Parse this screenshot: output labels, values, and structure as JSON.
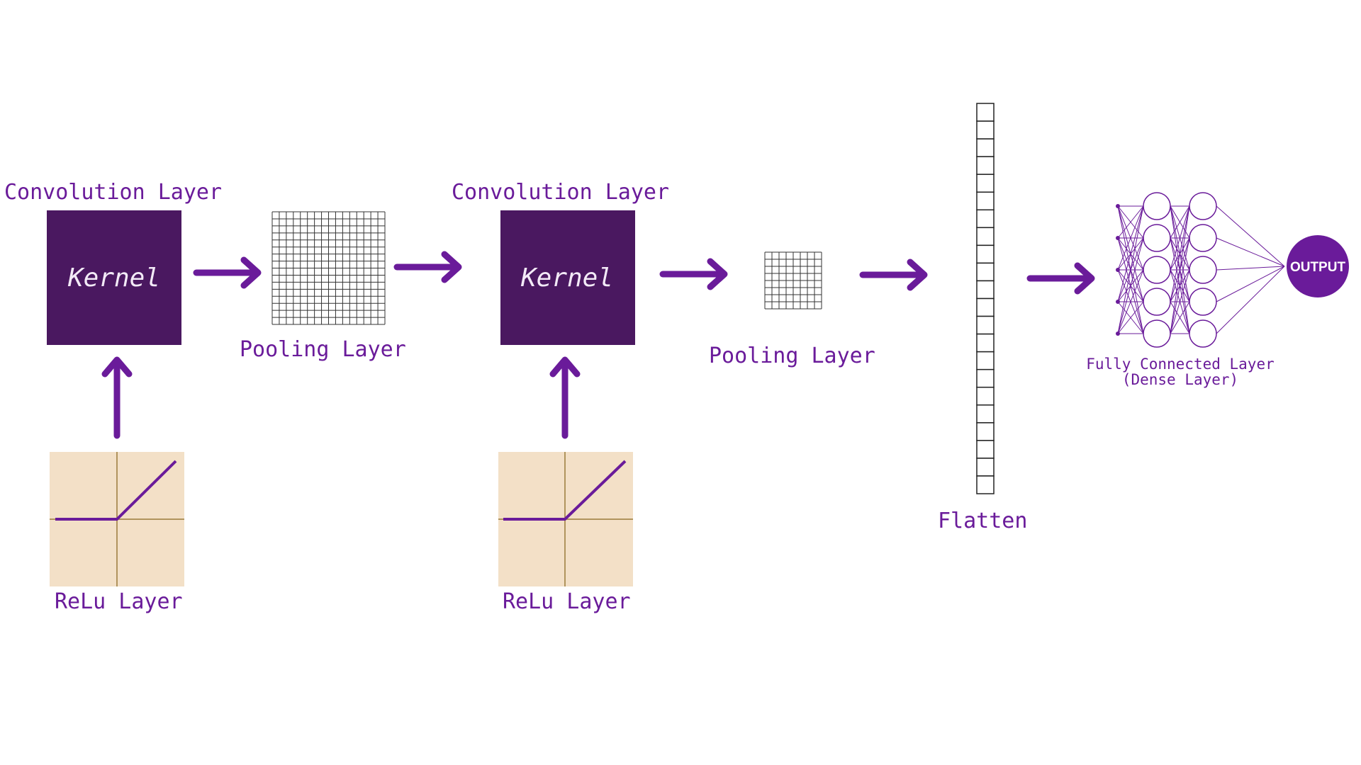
{
  "colors": {
    "accent": "#6a1b9a",
    "kernel_fill": "#4a1860",
    "relu_bg": "#f3e0c7",
    "relu_axis": "#9a7a3a",
    "grid_stroke": "#333333",
    "background": "#ffffff"
  },
  "labels": {
    "conv1": "Convolution Layer",
    "conv2": "Convolution Layer",
    "kernel1": "Kernel",
    "kernel2": "Kernel",
    "pool1": "Pooling Layer",
    "pool2": "Pooling Layer",
    "relu1": "ReLu Layer",
    "relu2": "ReLu Layer",
    "flatten": "Flatten",
    "fc_line1": "Fully Connected Layer",
    "fc_line2": "(Dense Layer)",
    "output": "OUTPUT"
  },
  "structure": {
    "pool1_grid_cells": 16,
    "pool2_grid_cells": 8,
    "flatten_cells": 22,
    "fc_layers": [
      5,
      5,
      5
    ],
    "output_nodes": 1
  }
}
